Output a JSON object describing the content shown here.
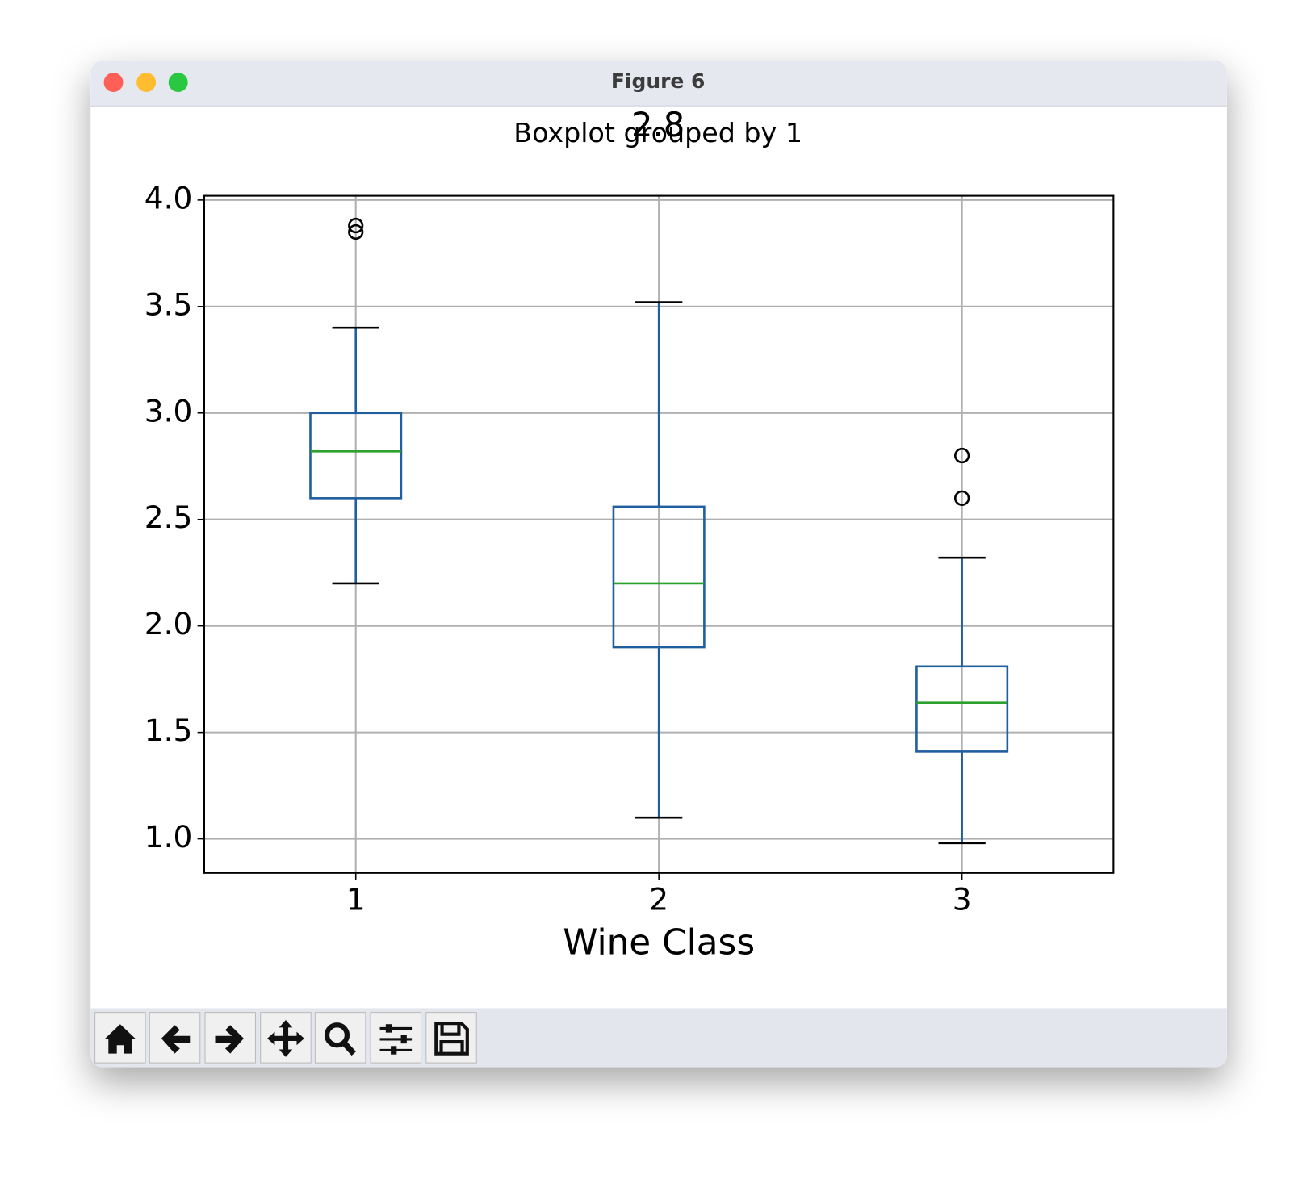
{
  "window": {
    "title": "Figure 6"
  },
  "chart_data": {
    "type": "box",
    "title": "Boxplot grouped by 1",
    "suptitle": "2.8",
    "x_label": "Wine Class",
    "categories": [
      "1",
      "2",
      "3"
    ],
    "box_color": "#1f5fa0",
    "median_color": "#2ca02c",
    "grid": true,
    "boxes": [
      {
        "whislo": 2.2,
        "q1": 2.6,
        "med": 2.82,
        "q3": 3.0,
        "whishi": 3.4,
        "fliers": [
          3.88,
          3.85
        ]
      },
      {
        "whislo": 1.1,
        "q1": 1.9,
        "med": 2.2,
        "q3": 2.56,
        "whishi": 3.52,
        "fliers": []
      },
      {
        "whislo": 0.98,
        "q1": 1.41,
        "med": 1.64,
        "q3": 1.81,
        "whishi": 2.32,
        "fliers": [
          2.8,
          2.6
        ]
      }
    ],
    "ylim": [
      0.84,
      4.02
    ],
    "yticks": [
      {
        "value": 1,
        "label": "1.0"
      },
      1.5,
      {
        "value": 2,
        "label": "2.0"
      },
      2.5,
      {
        "value": 3,
        "label": "3.0"
      },
      3.5,
      {
        "value": 4,
        "label": "4.0"
      }
    ]
  }
}
